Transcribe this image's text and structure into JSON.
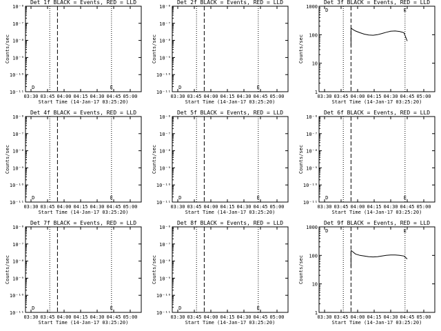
{
  "chart_data": [
    {
      "type": "line",
      "title": "Det 1f BLACK = Events, RED = LLD",
      "xlabel": "Start Time (14-Jan-17 03:25:20)",
      "ylabel": "Counts/sec",
      "scale": "scientific",
      "ytick_labels": [
        "10⁻⁶",
        "10⁻⁷",
        "10⁻⁸",
        "10⁻⁹",
        "10⁻¹⁰",
        "10⁻¹¹"
      ],
      "xtick_labels": [
        "03:30",
        "03:45",
        "04:00",
        "04:15",
        "04:30",
        "04:45",
        "05:00"
      ],
      "vlines_dotted": [
        "03:47",
        "04:43"
      ],
      "vlines_dashed": [
        "03:54"
      ],
      "markers": [
        {
          "label": "D",
          "x": "03:32"
        },
        {
          "label": "E",
          "x": "04:43"
        }
      ],
      "series": []
    },
    {
      "type": "line",
      "title": "Det 2f BLACK = Events, RED = LLD",
      "xlabel": "Start Time (14-Jan-17 03:25:20)",
      "ylabel": "Counts/sec",
      "scale": "scientific",
      "ytick_labels": [
        "10⁻⁶",
        "10⁻⁷",
        "10⁻⁸",
        "10⁻⁹",
        "10⁻¹⁰",
        "10⁻¹¹"
      ],
      "xtick_labels": [
        "03:30",
        "03:45",
        "04:00",
        "04:15",
        "04:30",
        "04:45",
        "05:00"
      ],
      "vlines_dotted": [
        "03:47",
        "04:43"
      ],
      "vlines_dashed": [
        "03:54"
      ],
      "markers": [
        {
          "label": "D",
          "x": "03:32"
        },
        {
          "label": "E",
          "x": "04:43"
        }
      ],
      "series": []
    },
    {
      "type": "line",
      "title": "Det 3f BLACK = Events, RED = LLD",
      "xlabel": "Start Time (14-Jan-17 03:25:20)",
      "ylabel": "Counts/sec",
      "scale": "log",
      "ytick_labels": [
        "1000",
        "100",
        "10",
        "1"
      ],
      "xtick_labels": [
        "03:30",
        "03:45",
        "04:00",
        "04:15",
        "04:30",
        "04:45",
        "05:00"
      ],
      "vlines_dotted": [
        "03:47",
        "04:43"
      ],
      "vlines_dashed": [
        "03:54"
      ],
      "markers": [
        {
          "label": "D",
          "x": "03:32"
        },
        {
          "label": "E",
          "x": "04:43"
        }
      ],
      "series": [
        {
          "x": [
            "03:54",
            "03:56",
            "03:58",
            "04:02",
            "04:06",
            "04:10",
            "04:14",
            "04:18",
            "04:22",
            "04:26",
            "04:30",
            "04:34",
            "04:38",
            "04:42",
            "04:45"
          ],
          "y": [
            170,
            150,
            135,
            118,
            105,
            98,
            96,
            100,
            110,
            122,
            132,
            135,
            130,
            118,
            60
          ]
        }
      ]
    },
    {
      "type": "line",
      "title": "Det 4f BLACK = Events, RED = LLD",
      "xlabel": "Start Time (14-Jan-17 03:25:20)",
      "ylabel": "Counts/sec",
      "scale": "scientific",
      "ytick_labels": [
        "10⁻⁶",
        "10⁻⁷",
        "10⁻⁸",
        "10⁻⁹",
        "10⁻¹⁰",
        "10⁻¹¹"
      ],
      "xtick_labels": [
        "03:30",
        "03:45",
        "04:00",
        "04:15",
        "04:30",
        "04:45",
        "05:00"
      ],
      "vlines_dotted": [
        "03:47",
        "04:43"
      ],
      "vlines_dashed": [
        "03:54"
      ],
      "markers": [
        {
          "label": "D",
          "x": "03:32"
        },
        {
          "label": "E",
          "x": "04:43"
        }
      ],
      "series": []
    },
    {
      "type": "line",
      "title": "Det 5f BLACK = Events, RED = LLD",
      "xlabel": "Start Time (14-Jan-17 03:25:20)",
      "ylabel": "Counts/sec",
      "scale": "scientific",
      "ytick_labels": [
        "10⁻⁶",
        "10⁻⁷",
        "10⁻⁸",
        "10⁻⁹",
        "10⁻¹⁰",
        "10⁻¹¹"
      ],
      "xtick_labels": [
        "03:30",
        "03:45",
        "04:00",
        "04:15",
        "04:30",
        "04:45",
        "05:00"
      ],
      "vlines_dotted": [
        "03:47",
        "04:43"
      ],
      "vlines_dashed": [
        "03:54"
      ],
      "markers": [
        {
          "label": "D",
          "x": "03:32"
        },
        {
          "label": "E",
          "x": "04:43"
        }
      ],
      "series": []
    },
    {
      "type": "line",
      "title": "Det 6f BLACK = Events, RED = LLD",
      "xlabel": "Start Time (14-Jan-17 03:25:20)",
      "ylabel": "Counts/sec",
      "scale": "scientific",
      "ytick_labels": [
        "10⁻⁶",
        "10⁻⁷",
        "10⁻⁸",
        "10⁻⁹",
        "10⁻¹⁰",
        "10⁻¹¹"
      ],
      "xtick_labels": [
        "03:30",
        "03:45",
        "04:00",
        "04:15",
        "04:30",
        "04:45",
        "05:00"
      ],
      "vlines_dotted": [
        "03:47",
        "04:43"
      ],
      "vlines_dashed": [
        "03:54"
      ],
      "markers": [
        {
          "label": "D",
          "x": "03:32"
        },
        {
          "label": "E",
          "x": "04:43"
        }
      ],
      "series": []
    },
    {
      "type": "line",
      "title": "Det 7f BLACK = Events, RED = LLD",
      "xlabel": "Start Time (14-Jan-17 03:25:20)",
      "ylabel": "Counts/sec",
      "scale": "scientific",
      "ytick_labels": [
        "10⁻⁶",
        "10⁻⁷",
        "10⁻⁸",
        "10⁻⁹",
        "10⁻¹⁰",
        "10⁻¹¹"
      ],
      "xtick_labels": [
        "03:30",
        "03:45",
        "04:00",
        "04:15",
        "04:30",
        "04:45",
        "05:00"
      ],
      "vlines_dotted": [
        "03:47",
        "04:43"
      ],
      "vlines_dashed": [
        "03:54"
      ],
      "markers": [
        {
          "label": "D",
          "x": "03:32"
        },
        {
          "label": "E",
          "x": "04:43"
        }
      ],
      "series": []
    },
    {
      "type": "line",
      "title": "Det 8f BLACK = Events, RED = LLD",
      "xlabel": "Start Time (14-Jan-17 03:25:20)",
      "ylabel": "Counts/sec",
      "scale": "scientific",
      "ytick_labels": [
        "10⁻⁶",
        "10⁻⁷",
        "10⁻⁸",
        "10⁻⁹",
        "10⁻¹⁰",
        "10⁻¹¹"
      ],
      "xtick_labels": [
        "03:30",
        "03:45",
        "04:00",
        "04:15",
        "04:30",
        "04:45",
        "05:00"
      ],
      "vlines_dotted": [
        "03:47",
        "04:43"
      ],
      "vlines_dashed": [
        "03:54"
      ],
      "markers": [
        {
          "label": "D",
          "x": "03:32"
        },
        {
          "label": "E",
          "x": "04:43"
        }
      ],
      "series": []
    },
    {
      "type": "line",
      "title": "Det 9f BLACK = Events, RED = LLD",
      "xlabel": "Start Time (14-Jan-17 03:25:20)",
      "ylabel": "Counts/sec",
      "scale": "log",
      "ytick_labels": [
        "1000",
        "100",
        "10",
        "1"
      ],
      "xtick_labels": [
        "03:30",
        "03:45",
        "04:00",
        "04:15",
        "04:30",
        "04:45",
        "05:00"
      ],
      "vlines_dotted": [
        "03:47",
        "04:43"
      ],
      "vlines_dashed": [
        "03:54"
      ],
      "markers": [
        {
          "label": "D",
          "x": "03:32"
        },
        {
          "label": "E",
          "x": "04:43"
        }
      ],
      "series": [
        {
          "x": [
            "03:54",
            "03:56",
            "03:58",
            "04:02",
            "04:06",
            "04:10",
            "04:14",
            "04:18",
            "04:22",
            "04:26",
            "04:30",
            "04:34",
            "04:38",
            "04:42",
            "04:45"
          ],
          "y": [
            150,
            130,
            112,
            100,
            95,
            90,
            88,
            90,
            95,
            100,
            103,
            103,
            100,
            95,
            75
          ]
        }
      ]
    }
  ]
}
